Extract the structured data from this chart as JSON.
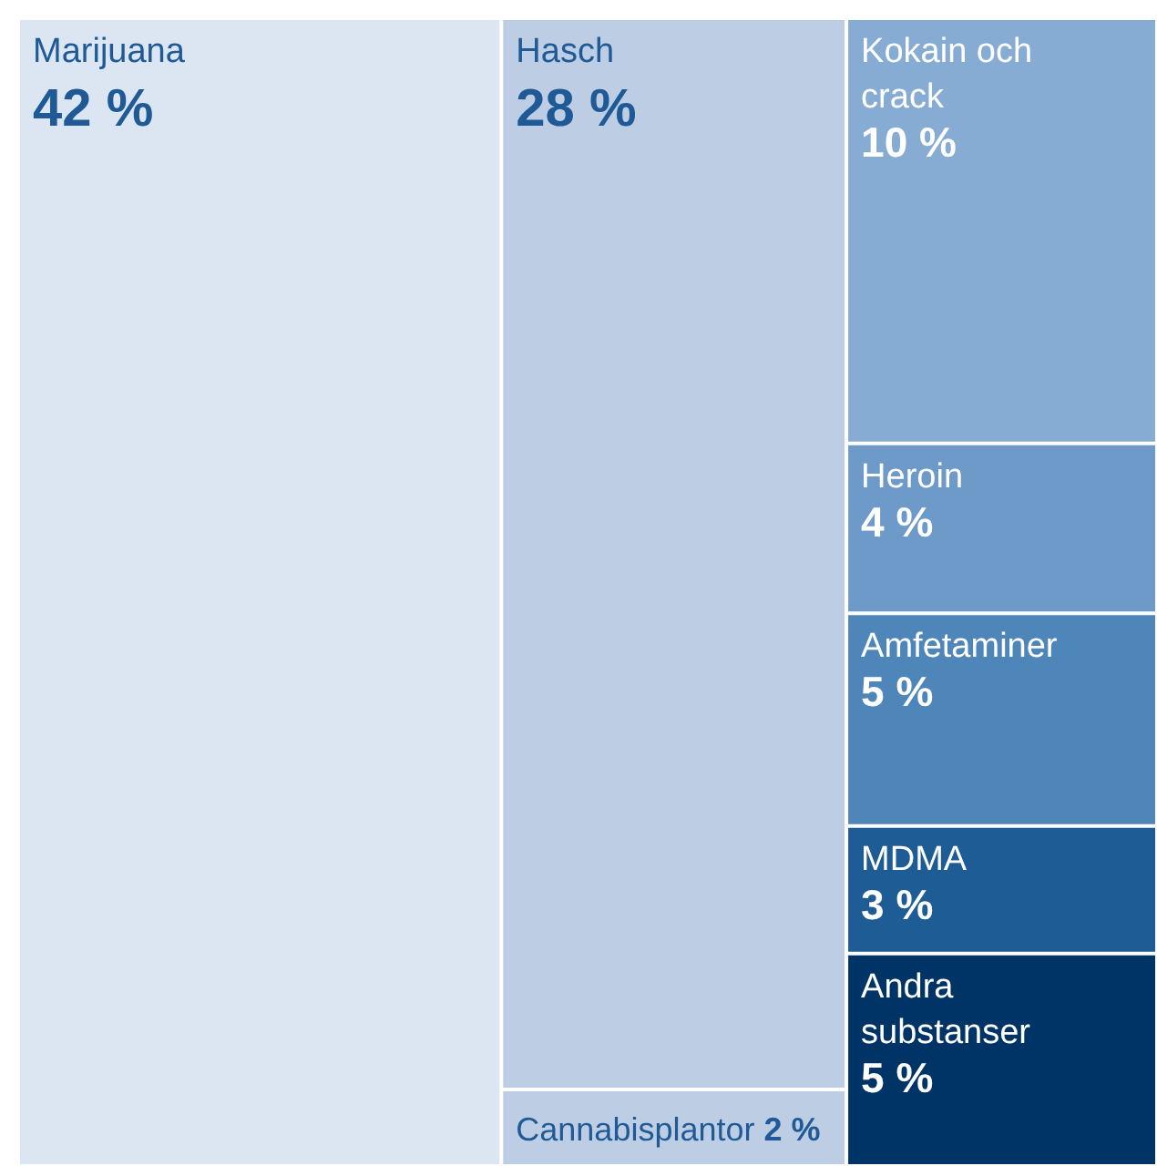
{
  "chart_data": {
    "type": "other",
    "categories": [
      "Marijuana",
      "Hasch",
      "Cannabisplantor",
      "Kokain och crack",
      "Heroin",
      "Amfetaminer",
      "MDMA",
      "Andra substanser"
    ],
    "values": [
      42,
      28,
      2,
      10,
      4,
      5,
      3,
      5
    ],
    "value_labels": [
      "42 %",
      "28 %",
      "2 %",
      "10 %",
      "4 %",
      "5 %",
      "3 %",
      "5 %"
    ],
    "colors": [
      "#dce6f3",
      "#bccde4",
      "#bccde4",
      "#86acd3",
      "#6d9ac8",
      "#4f86b9",
      "#1d5c95",
      "#003366"
    ]
  }
}
